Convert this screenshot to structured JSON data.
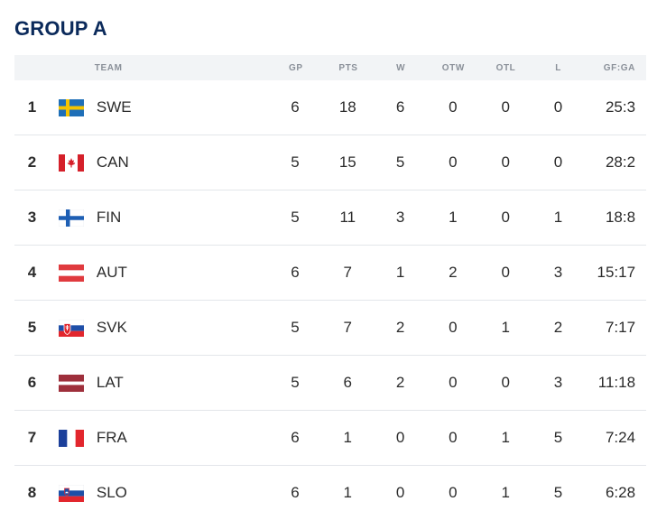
{
  "title": "GROUP A",
  "headers": {
    "team": "TEAM",
    "gp": "GP",
    "pts": "PTS",
    "w": "W",
    "otw": "OTW",
    "otl": "OTL",
    "l": "L",
    "gfga": "GF:GA"
  },
  "rows": [
    {
      "rank": "1",
      "team": "SWE",
      "flag": "swe",
      "gp": "6",
      "pts": "18",
      "w": "6",
      "otw": "0",
      "otl": "0",
      "l": "0",
      "gfga": "25:3"
    },
    {
      "rank": "2",
      "team": "CAN",
      "flag": "can",
      "gp": "5",
      "pts": "15",
      "w": "5",
      "otw": "0",
      "otl": "0",
      "l": "0",
      "gfga": "28:2"
    },
    {
      "rank": "3",
      "team": "FIN",
      "flag": "fin",
      "gp": "5",
      "pts": "11",
      "w": "3",
      "otw": "1",
      "otl": "0",
      "l": "1",
      "gfga": "18:8"
    },
    {
      "rank": "4",
      "team": "AUT",
      "flag": "aut",
      "gp": "6",
      "pts": "7",
      "w": "1",
      "otw": "2",
      "otl": "0",
      "l": "3",
      "gfga": "15:17"
    },
    {
      "rank": "5",
      "team": "SVK",
      "flag": "svk",
      "gp": "5",
      "pts": "7",
      "w": "2",
      "otw": "0",
      "otl": "1",
      "l": "2",
      "gfga": "7:17"
    },
    {
      "rank": "6",
      "team": "LAT",
      "flag": "lat",
      "gp": "5",
      "pts": "6",
      "w": "2",
      "otw": "0",
      "otl": "0",
      "l": "3",
      "gfga": "11:18"
    },
    {
      "rank": "7",
      "team": "FRA",
      "flag": "fra",
      "gp": "6",
      "pts": "1",
      "w": "0",
      "otw": "0",
      "otl": "1",
      "l": "5",
      "gfga": "7:24"
    },
    {
      "rank": "8",
      "team": "SLO",
      "flag": "slo",
      "gp": "6",
      "pts": "1",
      "w": "0",
      "otw": "0",
      "otl": "1",
      "l": "5",
      "gfga": "6:28"
    }
  ]
}
